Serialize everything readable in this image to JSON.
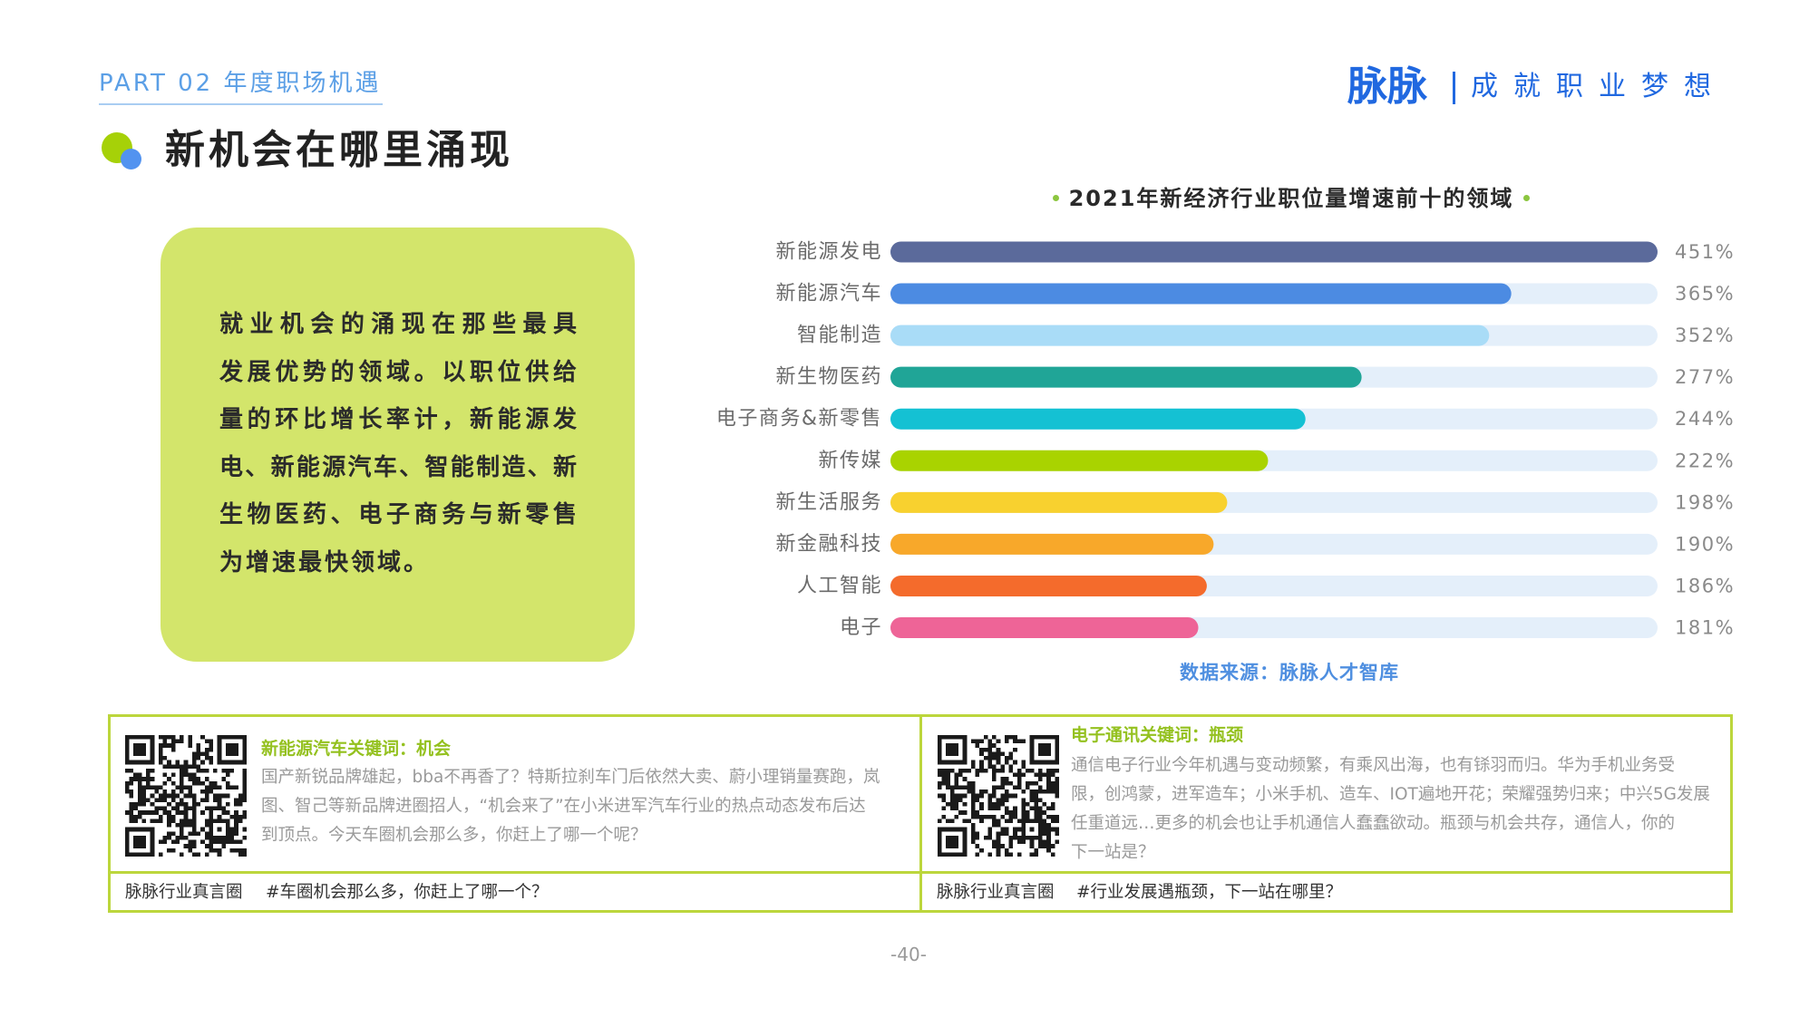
{
  "header": {
    "part_label": "PART 02 年度职场机遇",
    "logo_brand": "脉脉",
    "logo_slogan": "成就职业梦想"
  },
  "section": {
    "title": "新机会在哪里涌现",
    "summary_lines": [
      "就业机会的涌现在那些最具",
      "发展优势的领域。以职位供给",
      "量的环比增长率计，新能源发",
      "电、新能源汽车、智能制造、新",
      "生物医药、电子商务与新零售",
      "为增速最快领域。"
    ]
  },
  "chart_data": {
    "type": "bar",
    "orientation": "horizontal",
    "title": "2021年新经济行业职位量增速前十的领域",
    "categories": [
      "新能源发电",
      "新能源汽车",
      "智能制造",
      "新生物医药",
      "电子商务&新零售",
      "新传媒",
      "新生活服务",
      "新金融科技",
      "人工智能",
      "电子"
    ],
    "values": [
      451,
      365,
      352,
      277,
      244,
      222,
      198,
      190,
      186,
      181
    ],
    "value_labels": [
      "451%",
      "365%",
      "352%",
      "277%",
      "244%",
      "222%",
      "198%",
      "190%",
      "186%",
      "181%"
    ],
    "xlim": [
      0,
      451
    ],
    "grid": false,
    "legend": "none",
    "colors": [
      "#5b6a9b",
      "#4c8be2",
      "#a9dcf7",
      "#20a597",
      "#14c1d3",
      "#a9d300",
      "#f8d12f",
      "#f8a82a",
      "#f46b2c",
      "#ee6497"
    ],
    "track_color": "#e4effa",
    "source": "数据来源：脉脉人才智库"
  },
  "cards": [
    {
      "icon": "qr-code",
      "title": "新能源汽车关键词：机会",
      "body_lines": [
        "国产新锐品牌雄起，bba不再香了？特斯拉刹车门后依然大卖、蔚小理销量赛跑，岚",
        "图、智己等新品牌进圈招人，“机会来了”在小米进军汽车行业的热点动态发布后达",
        "到顶点。今天车圈机会那么多，你赶上了哪一个呢？"
      ],
      "footer_circle": "脉脉行业真言圈",
      "footer_topic": "#车圈机会那么多，你赶上了哪一个？"
    },
    {
      "icon": "qr-code",
      "title": "电子通讯关键词：瓶颈",
      "body_lines": [
        "通信电子行业今年机遇与变动频繁，有乘风出海，也有铩羽而归。华为手机业务受",
        "限，创鸿蒙，进军造车；小米手机、造车、IOT遍地开花；荣耀强势归来；中兴5G发展",
        "任重道远…更多的机会也让手机通信人蠢蠢欲动。瓶颈与机会共存，通信人，你的",
        "下一站是？"
      ],
      "footer_circle": "脉脉行业真言圈",
      "footer_topic": "#行业发展遇瓶颈，下一站在哪里？"
    }
  ],
  "page_number": "-40-",
  "theme": {
    "brand_blue": "#2068e0",
    "accent_green": "#a6d108",
    "panel_green": "#d3e56b",
    "frame_green": "#bcd63c",
    "source_blue": "#4f8fe0"
  }
}
